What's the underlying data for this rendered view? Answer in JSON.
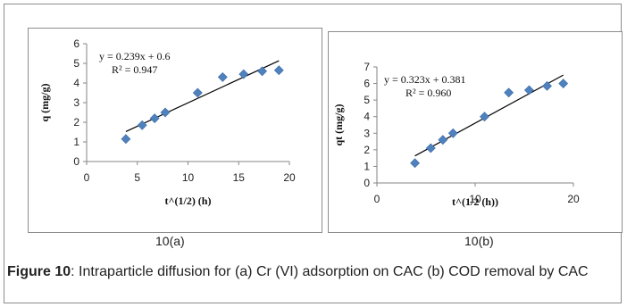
{
  "chart_data": [
    {
      "type": "scatter",
      "id": "10a",
      "title": "",
      "xlabel": "t^(1/2) (h)",
      "ylabel": "q (mg/g)",
      "xlim": [
        0,
        20
      ],
      "ylim": [
        0,
        6
      ],
      "xticks": [
        0,
        5,
        10,
        15,
        20
      ],
      "yticks": [
        0,
        1,
        2,
        3,
        4,
        5,
        6
      ],
      "points": [
        {
          "x": 3.87,
          "y": 1.15
        },
        {
          "x": 5.48,
          "y": 1.85
        },
        {
          "x": 6.71,
          "y": 2.2
        },
        {
          "x": 7.75,
          "y": 2.5
        },
        {
          "x": 10.95,
          "y": 3.5
        },
        {
          "x": 13.42,
          "y": 4.3
        },
        {
          "x": 15.49,
          "y": 4.45
        },
        {
          "x": 17.32,
          "y": 4.6
        },
        {
          "x": 18.97,
          "y": 4.65
        }
      ],
      "trendline": {
        "slope": 0.239,
        "intercept": 0.6,
        "x_start": 3.87,
        "x_end": 18.97
      },
      "equation": "y = 0.239x + 0.6",
      "r2": "R² = 0.947",
      "grid": false,
      "legend": "none",
      "marker_color": "#4f81bd",
      "line_color": "#000000"
    },
    {
      "type": "scatter",
      "id": "10b",
      "title": "",
      "xlabel": "t^(1/2 (h))",
      "ylabel": "qt (mg/g)",
      "xlim": [
        0,
        20
      ],
      "ylim": [
        0,
        7
      ],
      "xticks": [
        0,
        10,
        20
      ],
      "yticks": [
        0,
        1,
        2,
        3,
        4,
        5,
        6,
        7
      ],
      "points": [
        {
          "x": 3.87,
          "y": 1.2
        },
        {
          "x": 5.48,
          "y": 2.1
        },
        {
          "x": 6.71,
          "y": 2.6
        },
        {
          "x": 7.75,
          "y": 3.0
        },
        {
          "x": 10.95,
          "y": 4.0
        },
        {
          "x": 13.42,
          "y": 5.45
        },
        {
          "x": 15.49,
          "y": 5.6
        },
        {
          "x": 17.32,
          "y": 5.85
        },
        {
          "x": 18.97,
          "y": 6.0
        }
      ],
      "trendline": {
        "slope": 0.323,
        "intercept": 0.381,
        "x_start": 3.87,
        "x_end": 18.97
      },
      "equation": "y = 0.323x + 0.381",
      "r2": "R² = 0.960",
      "grid": false,
      "legend": "none",
      "marker_color": "#4f81bd",
      "line_color": "#000000"
    }
  ],
  "subfigure_labels": {
    "a": "10(a)",
    "b": "10(b)"
  },
  "caption": {
    "label": "Figure 10",
    "text": ": Intraparticle diffusion for (a) Cr (VI) adsorption on CAC (b) COD removal by CAC"
  }
}
